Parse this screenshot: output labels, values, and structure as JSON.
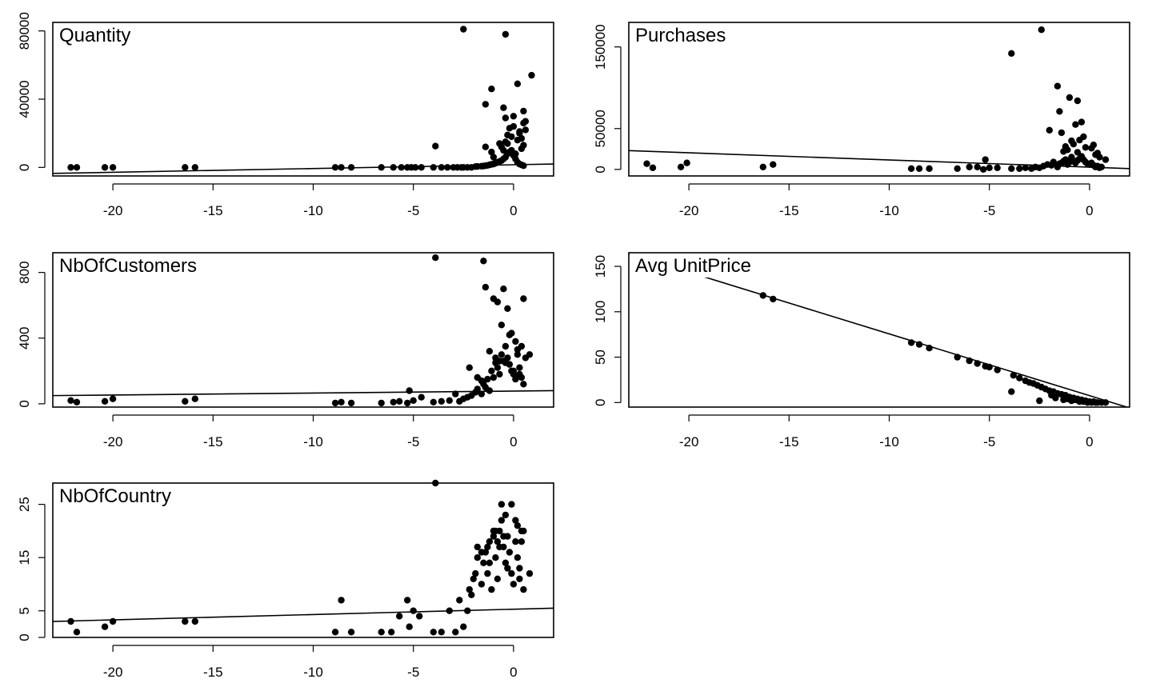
{
  "chart_data": [
    {
      "type": "scatter",
      "title": "Quantity",
      "xlim": [
        -23,
        2
      ],
      "ylim": [
        -5000,
        85000
      ],
      "x_ticks": [
        -20,
        -15,
        -10,
        -5,
        0
      ],
      "y_ticks": [
        0,
        40000,
        80000
      ],
      "fit_line": {
        "x": [
          -23,
          2
        ],
        "y": [
          -3500,
          2000
        ]
      },
      "points": {
        "x": [
          -22.1,
          -21.8,
          -20.4,
          -20.0,
          -16.4,
          -15.9,
          -8.9,
          -8.6,
          -8.1,
          -6.6,
          -6.0,
          -5.6,
          -5.3,
          -5.1,
          -4.9,
          -4.6,
          -4.0,
          -3.6,
          -3.3,
          -3.0,
          -2.8,
          -2.6,
          -2.5,
          -2.3,
          -2.1,
          -1.9,
          -1.8,
          -1.6,
          -1.5,
          -1.4,
          -1.3,
          -1.2,
          -1.1,
          -1.0,
          -0.9,
          -0.8,
          -0.7,
          -0.6,
          -0.5,
          -0.4,
          -0.3,
          -0.2,
          -0.1,
          0.0,
          0.1,
          0.2,
          0.3,
          0.4,
          0.5,
          -1.4,
          -1.1,
          -0.4,
          -0.3,
          0.4,
          0.6,
          0.5,
          -0.1,
          -0.7,
          0.3,
          0.2,
          -0.2,
          0.4,
          0.5,
          -0.5,
          0.1,
          -1.0,
          -0.6,
          0.0,
          0.3,
          -0.3,
          0.6,
          -2.5,
          -0.4,
          0.2,
          0.9,
          -1.1,
          -1.4,
          -0.5,
          0.5,
          -0.4,
          -3.9,
          0.0
        ],
        "y": [
          0,
          0,
          0,
          0,
          0,
          0,
          0,
          0,
          0,
          0,
          0,
          0,
          0,
          0,
          0,
          0,
          0,
          0,
          0,
          0,
          0,
          0,
          0,
          0,
          0,
          500,
          600,
          700,
          800,
          1000,
          1200,
          1500,
          1800,
          2000,
          2500,
          3000,
          3500,
          4000,
          5000,
          6000,
          8000,
          9000,
          10000,
          7000,
          5000,
          3000,
          2000,
          1500,
          1000,
          12000,
          9000,
          15000,
          19000,
          17000,
          22000,
          26000,
          18000,
          14000,
          20000,
          16000,
          23000,
          11000,
          13000,
          10000,
          8000,
          6000,
          12000,
          24000,
          21000,
          14000,
          27000,
          81000,
          78000,
          49000,
          54000,
          46000,
          37000,
          35000,
          33000,
          29000,
          12500,
          30000
        ]
      }
    },
    {
      "type": "scatter",
      "title": "Purchases",
      "xlim": [
        -23,
        2
      ],
      "ylim": [
        -8000,
        180000
      ],
      "x_ticks": [
        -20,
        -15,
        -10,
        -5,
        0
      ],
      "y_ticks": [
        0,
        50000,
        150000
      ],
      "fit_line": {
        "x": [
          -23,
          2
        ],
        "y": [
          23000,
          1000
        ]
      },
      "points": {
        "x": [
          -22.1,
          -21.8,
          -20.4,
          -20.1,
          -16.3,
          -15.8,
          -8.9,
          -8.5,
          -8.0,
          -6.6,
          -6.0,
          -5.6,
          -5.3,
          -5.2,
          -5.0,
          -4.6,
          -3.9,
          -3.5,
          -3.2,
          -2.9,
          -2.7,
          -2.5,
          -2.3,
          -2.1,
          -1.9,
          -1.8,
          -1.6,
          -1.5,
          -1.4,
          -1.3,
          -1.2,
          -1.1,
          -1.0,
          -0.9,
          -0.8,
          -0.7,
          -0.6,
          -0.5,
          -0.4,
          -0.3,
          -0.2,
          -0.1,
          0.0,
          0.1,
          0.2,
          0.3,
          0.4,
          0.5,
          0.6,
          0.8,
          -3.9,
          -2.4,
          -1.6,
          -1.5,
          -1.0,
          -0.6,
          -0.7,
          -0.4,
          -1.4,
          -1.2,
          -0.9,
          -0.3,
          0.2,
          0.4,
          -1.1,
          -0.5,
          -0.2,
          0.3,
          -0.8,
          -2.0,
          -1.3,
          0.1,
          0.5,
          -0.6
        ],
        "y": [
          7000,
          2000,
          3000,
          8000,
          3000,
          6000,
          1000,
          1000,
          1000,
          1000,
          3000,
          3000,
          0,
          12000,
          2000,
          2000,
          1000,
          1000,
          2000,
          1000,
          3000,
          2000,
          4000,
          6000,
          5000,
          9000,
          3000,
          7000,
          8000,
          10000,
          12000,
          6000,
          9000,
          15000,
          10000,
          8000,
          11000,
          13000,
          16000,
          12000,
          9000,
          7000,
          6000,
          8000,
          5000,
          3000,
          4000,
          2000,
          3000,
          12000,
          142000,
          171000,
          102000,
          71000,
          88000,
          84000,
          55000,
          58000,
          45000,
          28000,
          35000,
          40000,
          30000,
          20000,
          24000,
          36000,
          27000,
          18000,
          31000,
          48000,
          22000,
          26000,
          15000,
          21000
        ]
      }
    },
    {
      "type": "scatter",
      "title": "NbOfCustomers",
      "xlim": [
        -23,
        2
      ],
      "ylim": [
        -20,
        920
      ],
      "x_ticks": [
        -20,
        -15,
        -10,
        -5,
        0
      ],
      "y_ticks": [
        0,
        400,
        800
      ],
      "fit_line": {
        "x": [
          -23,
          2
        ],
        "y": [
          50,
          80
        ]
      },
      "points": {
        "x": [
          -22.1,
          -21.8,
          -20.4,
          -20.0,
          -16.4,
          -15.9,
          -8.9,
          -8.6,
          -8.1,
          -6.6,
          -6.0,
          -5.7,
          -5.3,
          -5.2,
          -5.0,
          -4.6,
          -4.0,
          -3.6,
          -3.2,
          -2.9,
          -2.7,
          -2.5,
          -2.3,
          -2.1,
          -1.9,
          -1.8,
          -1.6,
          -1.5,
          -1.4,
          -1.3,
          -1.2,
          -1.1,
          -1.0,
          -0.9,
          -0.8,
          -0.7,
          -0.6,
          -0.5,
          -0.4,
          -0.3,
          -0.2,
          -0.1,
          0.0,
          0.1,
          0.2,
          0.3,
          0.4,
          0.5,
          0.8,
          -3.9,
          -1.5,
          -1.4,
          -1.0,
          -0.8,
          -0.5,
          -0.3,
          0.5,
          -0.6,
          -0.2,
          0.1,
          0.4,
          -1.2,
          -0.9,
          -0.7,
          -0.4,
          0.0,
          0.3,
          -1.6,
          -2.2,
          -1.8,
          0.6,
          -0.1,
          0.2
        ],
        "y": [
          20,
          10,
          15,
          30,
          15,
          30,
          5,
          10,
          5,
          5,
          10,
          15,
          5,
          80,
          20,
          40,
          10,
          15,
          20,
          60,
          15,
          30,
          40,
          50,
          70,
          90,
          60,
          120,
          100,
          150,
          80,
          200,
          160,
          250,
          220,
          180,
          300,
          260,
          350,
          280,
          240,
          200,
          180,
          150,
          300,
          220,
          160,
          120,
          300,
          890,
          870,
          710,
          640,
          620,
          700,
          580,
          640,
          480,
          420,
          380,
          350,
          320,
          280,
          260,
          250,
          200,
          180,
          140,
          220,
          160,
          280,
          430,
          330
        ]
      }
    },
    {
      "type": "scatter",
      "title": "Avg UnitPrice",
      "xlim": [
        -23,
        2
      ],
      "ylim": [
        -5,
        165
      ],
      "x_ticks": [
        -20,
        -15,
        -10,
        -5,
        0
      ],
      "y_ticks": [
        0,
        50,
        100,
        150
      ],
      "fit_line": {
        "x": [
          -23,
          2
        ],
        "y": [
          164,
          -6
        ]
      },
      "points": {
        "x": [
          -16.3,
          -15.8,
          -8.9,
          -8.5,
          -8.0,
          -6.6,
          -6.0,
          -5.6,
          -5.2,
          -5.0,
          -4.6,
          -3.8,
          -3.5,
          -3.2,
          -3.0,
          -2.8,
          -2.6,
          -2.4,
          -2.2,
          -2.0,
          -1.8,
          -1.6,
          -1.4,
          -1.2,
          -1.0,
          -0.8,
          -0.6,
          -0.4,
          -0.2,
          0.0,
          0.2,
          0.4,
          0.6,
          0.8,
          -3.9,
          -2.5,
          -1.7,
          -1.3,
          -0.9,
          -0.5,
          -0.1,
          0.3,
          -1.9,
          -1.1,
          -0.7,
          -0.3,
          0.1
        ],
        "y": [
          118,
          114,
          66,
          64,
          60,
          50,
          46,
          43,
          40,
          39,
          36,
          30,
          27,
          24,
          22,
          21,
          19,
          17,
          15,
          13,
          12,
          10,
          9,
          8,
          6,
          5,
          4,
          3,
          2,
          1,
          1,
          0,
          0,
          0,
          12,
          2,
          5,
          3,
          2,
          1,
          0,
          0,
          8,
          4,
          3,
          1,
          0
        ]
      }
    },
    {
      "type": "scatter",
      "title": "NbOfCountry",
      "xlim": [
        -23,
        2
      ],
      "ylim": [
        0,
        29
      ],
      "x_ticks": [
        -20,
        -15,
        -10,
        -5,
        0
      ],
      "y_ticks": [
        0,
        5,
        15,
        25
      ],
      "fit_line": {
        "x": [
          -23,
          2
        ],
        "y": [
          3,
          5.5
        ]
      },
      "points": {
        "x": [
          -22.1,
          -21.8,
          -20.4,
          -20.0,
          -16.4,
          -15.9,
          -8.9,
          -8.6,
          -8.1,
          -6.6,
          -6.1,
          -5.7,
          -5.3,
          -5.2,
          -5.0,
          -4.7,
          -4.0,
          -3.6,
          -3.2,
          -2.9,
          -2.7,
          -2.5,
          -2.3,
          -2.1,
          -1.9,
          -1.8,
          -1.6,
          -1.5,
          -1.4,
          -1.3,
          -1.2,
          -1.1,
          -1.0,
          -0.9,
          -0.8,
          -0.7,
          -0.6,
          -0.5,
          -0.4,
          -0.3,
          -0.2,
          -0.1,
          0.0,
          0.1,
          0.2,
          0.3,
          0.4,
          0.5,
          0.8,
          -3.9,
          -0.6,
          -0.1,
          -0.4,
          -0.7,
          0.2,
          0.4,
          -1.0,
          -1.3,
          -1.6,
          -1.8,
          -0.9,
          0.5,
          0.1,
          -0.3,
          -0.5,
          -1.2,
          -2.0,
          -2.2,
          -0.8,
          0.3
        ],
        "y": [
          3,
          1,
          2,
          3,
          3,
          3,
          1,
          7,
          1,
          1,
          1,
          4,
          7,
          2,
          5,
          4,
          1,
          1,
          5,
          1,
          7,
          2,
          5,
          8,
          12,
          17,
          10,
          14,
          16,
          12,
          18,
          9,
          20,
          15,
          11,
          17,
          22,
          19,
          14,
          13,
          16,
          12,
          10,
          18,
          15,
          11,
          20,
          9,
          12,
          29,
          25,
          25,
          23,
          20,
          21,
          18,
          19,
          17,
          16,
          15,
          20,
          20,
          22,
          19,
          17,
          14,
          11,
          9,
          18,
          13
        ]
      }
    }
  ]
}
